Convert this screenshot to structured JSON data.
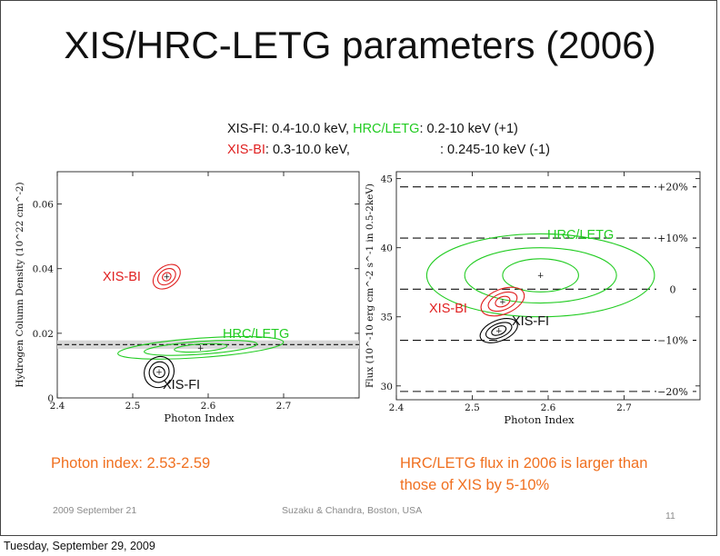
{
  "title": "XIS/HRC-LETG parameters (2006)",
  "energy": {
    "fi_label": "XIS-FI",
    "fi_range": ": 0.4-10.0 keV,",
    "hrc_label": "HRC/LETG",
    "hrc_range": ": 0.2-10 keV (+1)",
    "bi_label": "XIS-BI",
    "bi_range": ": 0.3-10.0 keV,",
    "hrc_range_minus": ": 0.245-10 keV (-1)"
  },
  "notes": {
    "left": "Photon index: 2.53-2.59",
    "right_line1": "HRC/LETG flux in 2006 is larger than",
    "right_line2": "those of XIS by 5-10%"
  },
  "footer": {
    "date": "2009 September 21",
    "venue": "Suzaku & Chandra, Boston, USA",
    "page": "11"
  },
  "caption": "Tuesday, September 29, 2009",
  "colors": {
    "fi": "#000000",
    "bi": "#e02020",
    "hrc": "#22cc22",
    "note": "#f07020"
  },
  "chart_data": [
    {
      "type": "scatter",
      "title": "",
      "xlabel": "Photon Index",
      "ylabel": "Hydrogen Column Density (10^22 cm^-2)",
      "xlim": [
        2.4,
        2.8
      ],
      "ylim": [
        0,
        0.07
      ],
      "x_ticks": [
        2.4,
        2.5,
        2.6,
        2.7
      ],
      "x_tick_labels": [
        "2.4",
        "2.5",
        "2.6",
        "2.7"
      ],
      "y_ticks": [
        0,
        0.02,
        0.04,
        0.06
      ],
      "y_tick_labels": [
        "0",
        "0.02",
        "0.04",
        "0.06"
      ],
      "reference_line": {
        "y": 0.0165,
        "style": "dashed",
        "band": [
          0.0152,
          0.0178
        ]
      },
      "series": [
        {
          "name": "XIS-BI",
          "color": "#e02020",
          "center": [
            2.545,
            0.0375
          ],
          "contours": [
            [
              0.006,
              0.0012
            ],
            [
              0.013,
              0.0022
            ],
            [
              0.02,
              0.0032
            ]
          ]
        },
        {
          "name": "HRC/LETG",
          "color": "#22cc22",
          "center": [
            2.59,
            0.0155
          ],
          "contours": [
            [
              0.035,
              0.0012
            ],
            [
              0.075,
              0.002
            ],
            [
              0.11,
              0.003
            ]
          ]
        },
        {
          "name": "XIS-FI",
          "color": "#000000",
          "center": [
            2.535,
            0.008
          ],
          "contours": [
            [
              0.007,
              0.0018
            ],
            [
              0.014,
              0.003
            ],
            [
              0.021,
              0.0045
            ]
          ]
        }
      ],
      "series_labels": {
        "bi": "XIS-BI",
        "hrc": "HRC/LETG",
        "fi": "XIS-FI"
      }
    },
    {
      "type": "scatter",
      "title": "",
      "xlabel": "Photon Index",
      "ylabel": "Flux (10^-10 erg cm^-2 s^-1 in 0.5-2keV)",
      "xlim": [
        2.4,
        2.8
      ],
      "ylim": [
        29,
        45.5
      ],
      "x_ticks": [
        2.4,
        2.5,
        2.6,
        2.7
      ],
      "x_tick_labels": [
        "2.4",
        "2.5",
        "2.6",
        "2.7"
      ],
      "y_ticks": [
        30,
        35,
        40,
        45
      ],
      "y_tick_labels": [
        "30",
        "35",
        "40",
        "45"
      ],
      "reference_lines": [
        {
          "y": 44.4,
          "label": "+20%"
        },
        {
          "y": 40.7,
          "label": "+10%"
        },
        {
          "y": 37.0,
          "label": "0"
        },
        {
          "y": 33.3,
          "label": "−10%"
        },
        {
          "y": 29.6,
          "label": "−20%"
        }
      ],
      "series": [
        {
          "name": "HRC/LETG",
          "color": "#22cc22",
          "center": [
            2.59,
            38.0
          ],
          "contours": [
            [
              0.05,
              1.2
            ],
            [
              0.1,
              2.0
            ],
            [
              0.15,
              3.0
            ]
          ]
        },
        {
          "name": "XIS-BI",
          "color": "#e02020",
          "center": [
            2.54,
            36.1
          ],
          "contours": [
            [
              0.01,
              0.35
            ],
            [
              0.02,
              0.6
            ],
            [
              0.03,
              0.9
            ]
          ]
        },
        {
          "name": "XIS-FI",
          "color": "#000000",
          "center": [
            2.535,
            34.0
          ],
          "contours": [
            [
              0.01,
              0.3
            ],
            [
              0.018,
              0.5
            ],
            [
              0.026,
              0.75
            ]
          ]
        }
      ],
      "series_labels": {
        "hrc": "HRC/LETG",
        "bi": "XIS-BI",
        "fi": "XIS-FI"
      }
    }
  ]
}
